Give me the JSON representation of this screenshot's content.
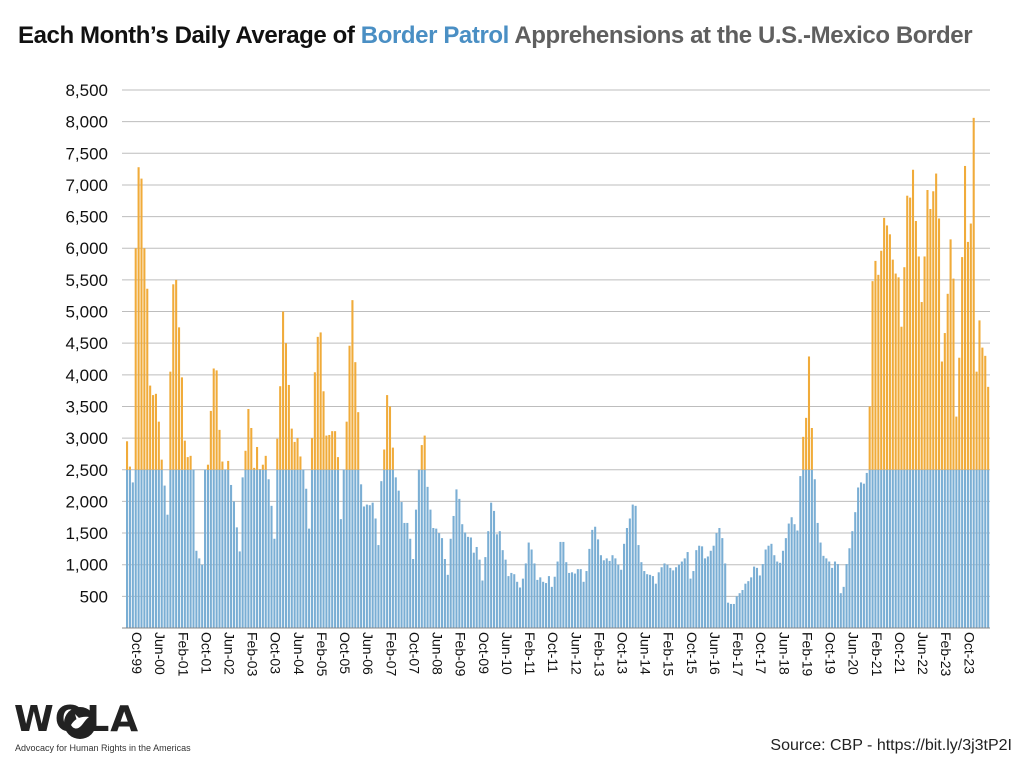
{
  "title": {
    "part1": "Each Month’s Daily Average of ",
    "part2": "Border Patrol",
    "part3": " Apprehensions at the U.S.-Mexico Border"
  },
  "logo": {
    "text": "WOLA",
    "tagline": "Advocacy for Human Rights in the Americas"
  },
  "source": "Source: CBP - https://bit.ly/3j3tP2I",
  "colors": {
    "base": "#7aaed4",
    "above": "#f0ab3a",
    "grid": "#bdbdbd",
    "titleBlue": "#4a8fc4"
  },
  "chart_data": {
    "type": "bar",
    "stacked": true,
    "threshold": 2500,
    "ylim": [
      0,
      8500
    ],
    "yticks": [
      500,
      1000,
      1500,
      2000,
      2500,
      3000,
      3500,
      4000,
      4500,
      5000,
      5500,
      6000,
      6500,
      7000,
      7500,
      8000,
      8500
    ],
    "ytick_labels": [
      "500",
      "1,000",
      "1,500",
      "2,000",
      "2,500",
      "3,000",
      "3,500",
      "4,000",
      "4,500",
      "5,000",
      "5,500",
      "6,000",
      "6,500",
      "7,000",
      "7,500",
      "8,000",
      "8,500"
    ],
    "grid": true,
    "xtick_labels": [
      "Oct-99",
      "Jun-00",
      "Feb-01",
      "Oct-01",
      "Jun-02",
      "Feb-03",
      "Oct-03",
      "Jun-04",
      "Feb-05",
      "Oct-05",
      "Jun-06",
      "Feb-07",
      "Oct-07",
      "Jun-08",
      "Feb-09",
      "Oct-09",
      "Jun-10",
      "Feb-11",
      "Oct-11",
      "Jun-12",
      "Feb-13",
      "Oct-13",
      "Jun-14",
      "Feb-15",
      "Oct-15",
      "Jun-16",
      "Feb-17",
      "Oct-17",
      "Jun-18",
      "Feb-19",
      "Oct-19",
      "Jun-20",
      "Feb-21",
      "Oct-21",
      "Jun-22",
      "Feb-23",
      "Oct-23"
    ],
    "first_month": "Oct-99",
    "values": [
      2950,
      2550,
      2300,
      6000,
      7280,
      7100,
      6000,
      5360,
      3830,
      3680,
      3700,
      3260,
      2660,
      2250,
      1790,
      4050,
      5430,
      5500,
      4750,
      3960,
      2960,
      2700,
      2720,
      2500,
      1220,
      1100,
      1000,
      2500,
      2580,
      3430,
      4100,
      4070,
      3130,
      2630,
      2500,
      2640,
      2260,
      2000,
      1590,
      1210,
      2380,
      2800,
      3460,
      3160,
      2530,
      2860,
      2510,
      2580,
      2720,
      2350,
      1930,
      1410,
      2990,
      3820,
      5000,
      4500,
      3840,
      3150,
      2940,
      3000,
      2710,
      2500,
      2200,
      1570,
      3000,
      4040,
      4600,
      4670,
      3740,
      3040,
      3050,
      3110,
      3110,
      2700,
      1720,
      2500,
      3260,
      4460,
      5180,
      4200,
      3410,
      2270,
      1920,
      1950,
      1940,
      1980,
      1730,
      1310,
      2320,
      2820,
      3680,
      3500,
      2850,
      2380,
      2170,
      1990,
      1660,
      1660,
      1410,
      1090,
      1870,
      2500,
      2890,
      3040,
      2230,
      1870,
      1580,
      1570,
      1500,
      1420,
      1090,
      840,
      1410,
      1770,
      2190,
      2040,
      1640,
      1510,
      1440,
      1430,
      1190,
      1280,
      1080,
      750,
      1120,
      1530,
      1980,
      1850,
      1480,
      1530,
      1230,
      1080,
      820,
      870,
      850,
      730,
      640,
      780,
      1020,
      1350,
      1240,
      1020,
      760,
      800,
      730,
      710,
      820,
      650,
      810,
      1050,
      1360,
      1360,
      1040,
      870,
      880,
      860,
      930,
      930,
      730,
      900,
      1250,
      1550,
      1600,
      1400,
      1150,
      1070,
      1100,
      1060,
      1150,
      1100,
      1000,
      920,
      1330,
      1580,
      1730,
      1950,
      1930,
      1310,
      1040,
      900,
      850,
      840,
      820,
      700,
      880,
      960,
      1020,
      1000,
      950,
      910,
      960,
      1000,
      1050,
      1100,
      1200,
      780,
      900,
      1230,
      1300,
      1290,
      1100,
      1130,
      1220,
      1300,
      1500,
      1580,
      1420,
      1020,
      400,
      380,
      380,
      500,
      550,
      600,
      700,
      740,
      800,
      970,
      950,
      830,
      1010,
      1240,
      1300,
      1330,
      1150,
      1050,
      1030,
      1220,
      1420,
      1650,
      1750,
      1640,
      1540,
      2400,
      3020,
      3320,
      4290,
      3160,
      2350,
      1660,
      1350,
      1140,
      1100,
      1050,
      950,
      1050,
      1010,
      550,
      650,
      1010,
      1260,
      1530,
      1830,
      2220,
      2300,
      2280,
      2450,
      3500,
      5480,
      5800,
      5580,
      5960,
      6480,
      6360,
      6220,
      5820,
      5600,
      5540,
      4760,
      5700,
      6830,
      6800,
      7240,
      6430,
      5870,
      5150,
      5870,
      6920,
      6620,
      6900,
      7180,
      6470,
      4210,
      4660,
      5280,
      6140,
      5520,
      3340,
      4270,
      5860,
      7300,
      6100,
      6390,
      8060,
      4050,
      4860,
      4430,
      4300,
      3810
    ],
    "values_note": "monthly daily-average apprehensions, Oct-99 to Mar-24"
  }
}
